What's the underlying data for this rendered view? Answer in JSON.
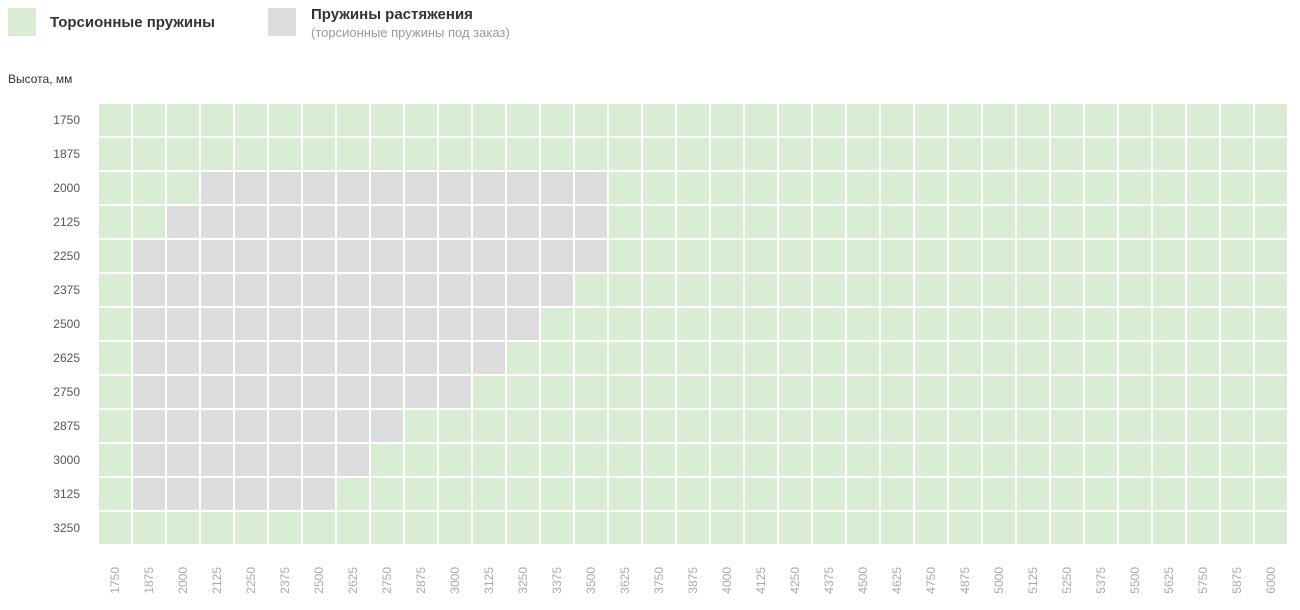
{
  "legend": {
    "torsion": {
      "label": "Торсионные пружины",
      "color": "#d8edd4"
    },
    "extension": {
      "label": "Пружины растяжения",
      "note": "(торсионные пружины под заказ)",
      "color": "#dddddd"
    }
  },
  "chart_data": {
    "type": "heatmap",
    "ylabel": "Высота, мм",
    "xlabel": "",
    "x": [
      1750,
      1875,
      2000,
      2125,
      2250,
      2375,
      2500,
      2625,
      2750,
      2875,
      3000,
      3125,
      3250,
      3375,
      3500,
      3625,
      3750,
      3875,
      4000,
      4125,
      4250,
      4375,
      4500,
      4625,
      4750,
      4875,
      5000,
      5125,
      5250,
      5375,
      5500,
      5625,
      5750,
      5875,
      6000
    ],
    "y": [
      1750,
      1875,
      2000,
      2125,
      2250,
      2375,
      2500,
      2625,
      2750,
      2875,
      3000,
      3125,
      3250
    ],
    "categories_legend": [
      "torsion",
      "extension"
    ],
    "extension_ranges": [
      {
        "height": 1750,
        "width_from": null,
        "width_to": null
      },
      {
        "height": 1875,
        "width_from": null,
        "width_to": null
      },
      {
        "height": 2000,
        "width_from": 2125,
        "width_to": 3500
      },
      {
        "height": 2125,
        "width_from": 2000,
        "width_to": 3500
      },
      {
        "height": 2250,
        "width_from": 1875,
        "width_to": 3500
      },
      {
        "height": 2375,
        "width_from": 1875,
        "width_to": 3375
      },
      {
        "height": 2500,
        "width_from": 1875,
        "width_to": 3250
      },
      {
        "height": 2625,
        "width_from": 1875,
        "width_to": 3125
      },
      {
        "height": 2750,
        "width_from": 1875,
        "width_to": 3000
      },
      {
        "height": 2875,
        "width_from": 1875,
        "width_to": 2750
      },
      {
        "height": 3000,
        "width_from": 1875,
        "width_to": 2625
      },
      {
        "height": 3125,
        "width_from": 1875,
        "width_to": 2500
      },
      {
        "height": 3250,
        "width_from": null,
        "width_to": null
      }
    ]
  }
}
